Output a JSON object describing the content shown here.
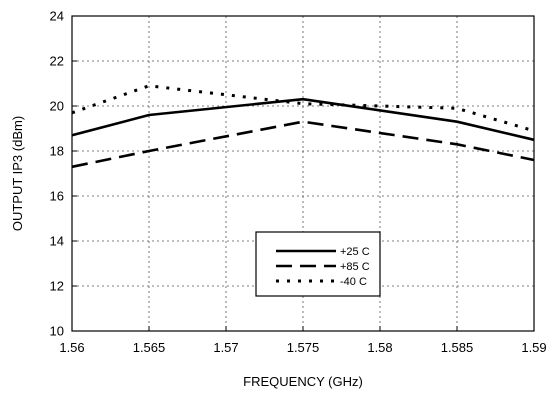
{
  "chart_data": {
    "type": "line",
    "title": "",
    "xlabel": "FREQUENCY (GHz)",
    "ylabel": "OUTPUT IP3 (dBm)",
    "xlim": [
      1.56,
      1.59
    ],
    "ylim": [
      10,
      24
    ],
    "x_ticks": [
      1.56,
      1.565,
      1.57,
      1.575,
      1.58,
      1.585,
      1.59
    ],
    "x_tick_labels": [
      "1.56",
      "1.565",
      "1.57",
      "1.575",
      "1.58",
      "1.585",
      "1.59"
    ],
    "y_ticks": [
      10,
      12,
      14,
      16,
      18,
      20,
      22,
      24
    ],
    "y_tick_labels": [
      "10",
      "12",
      "14",
      "16",
      "18",
      "20",
      "22",
      "24"
    ],
    "grid": true,
    "legend_position": "lower-center",
    "series": [
      {
        "name": "+25 C",
        "style": "solid",
        "x": [
          1.56,
          1.565,
          1.575,
          1.585,
          1.59
        ],
        "y": [
          18.7,
          19.6,
          20.3,
          19.3,
          18.5
        ]
      },
      {
        "name": "+85 C",
        "style": "dashed",
        "x": [
          1.56,
          1.565,
          1.575,
          1.585,
          1.59
        ],
        "y": [
          17.3,
          18.0,
          19.3,
          18.3,
          17.6
        ]
      },
      {
        "name": "-40 C",
        "style": "dotted",
        "x": [
          1.56,
          1.565,
          1.575,
          1.585,
          1.59
        ],
        "y": [
          19.7,
          20.9,
          20.1,
          19.9,
          18.9
        ]
      }
    ]
  }
}
